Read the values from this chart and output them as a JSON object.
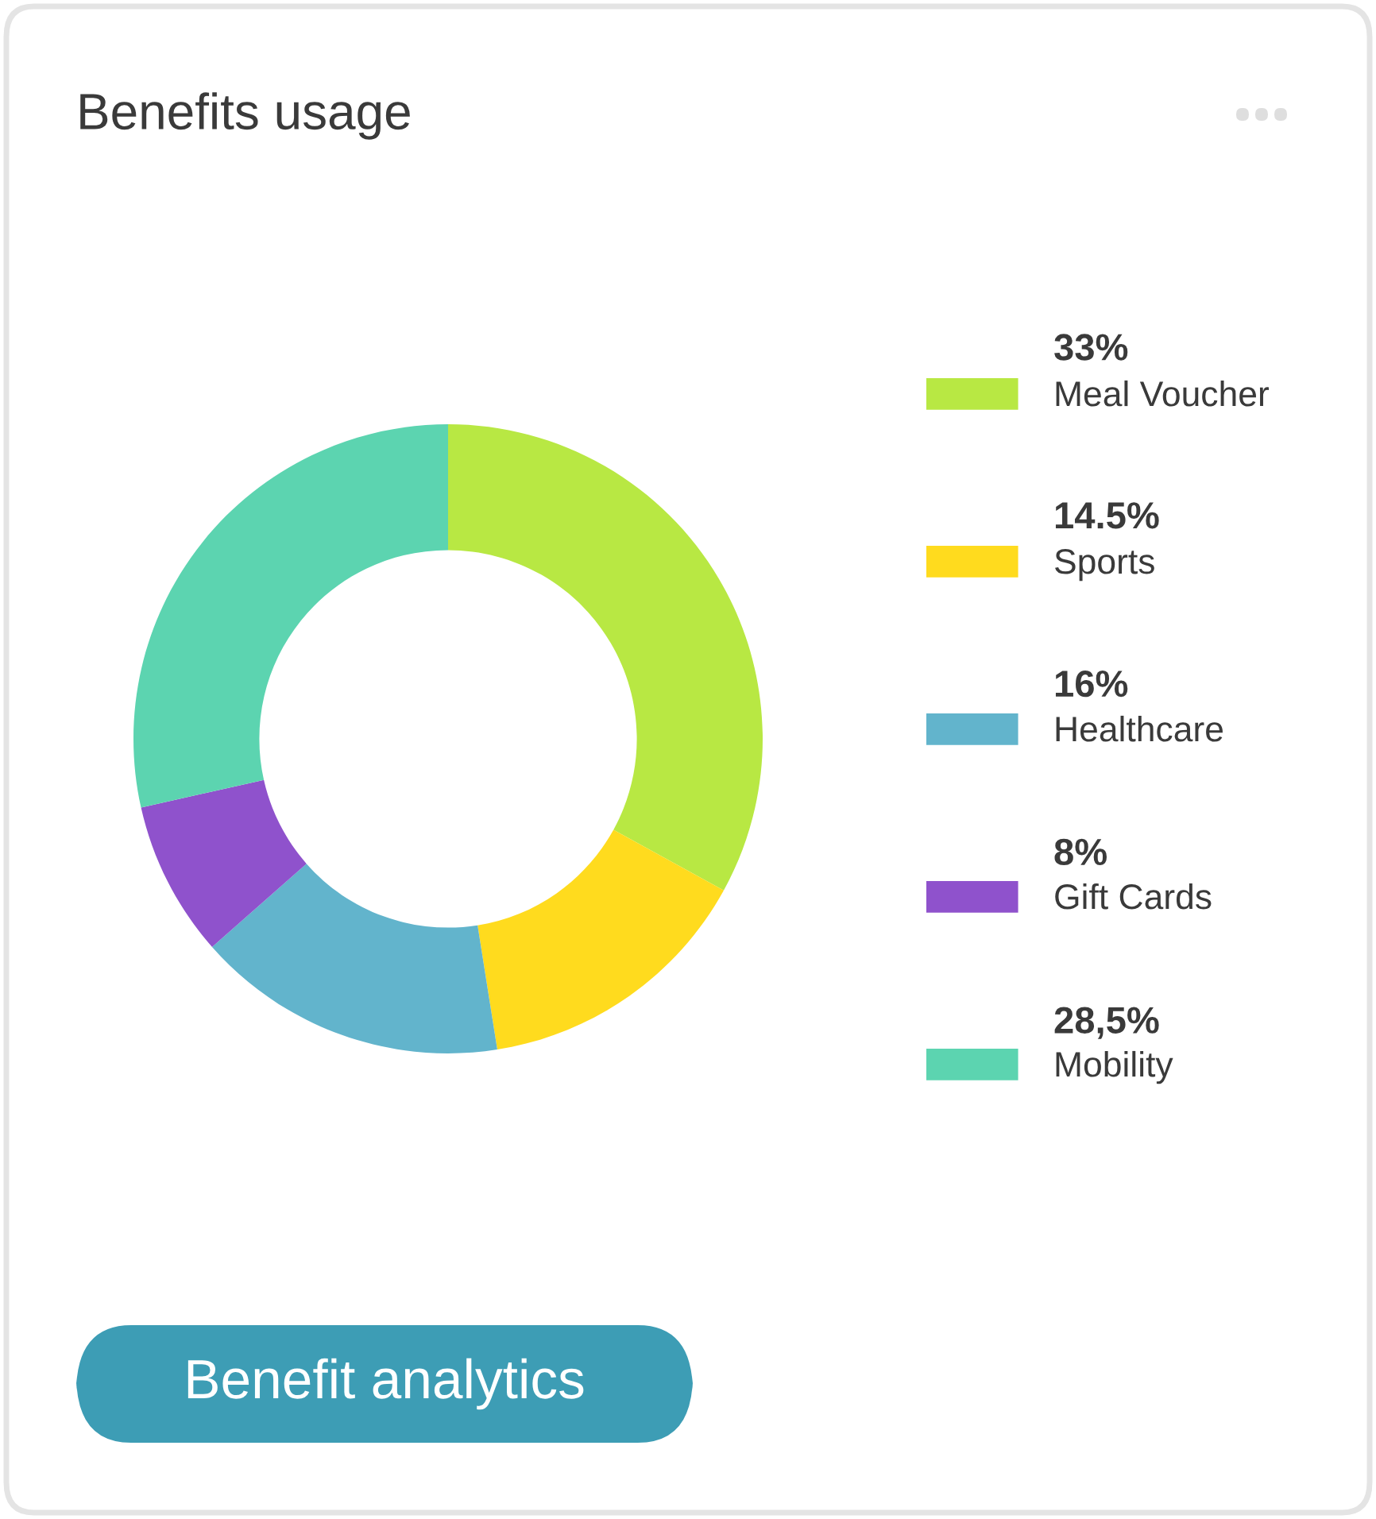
{
  "chart_data": {
    "type": "donut",
    "title": "Benefits usage",
    "categories": [
      "Meal Voucher",
      "Sports",
      "Healthcare",
      "Gift Cards",
      "Mobility"
    ],
    "values": [
      33,
      14.5,
      16,
      8,
      28.5
    ],
    "value_labels": [
      "33%",
      "14.5%",
      "16%",
      "8%",
      "28,5%"
    ],
    "colors": [
      "#b8e843",
      "#ffdb1e",
      "#62b4cc",
      "#8f52cc",
      "#5cd4b0"
    ],
    "legend": "right",
    "annotations": [
      "Benefit analytics"
    ]
  }
}
